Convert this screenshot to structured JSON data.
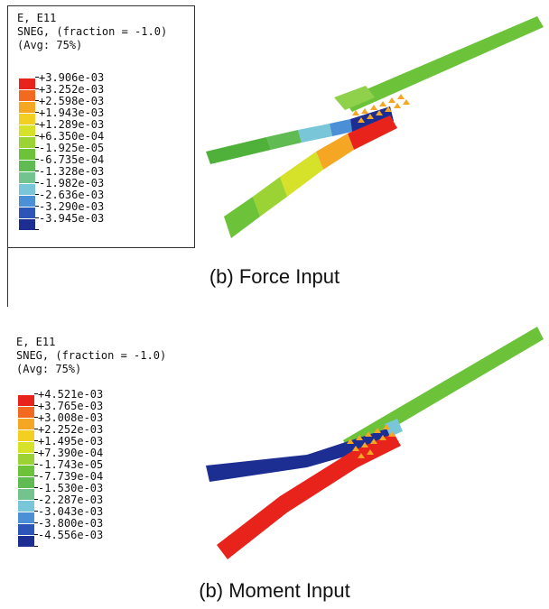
{
  "top": {
    "header_line1": "E, E11",
    "header_line2": "SNEG, (fraction = -1.0)",
    "header_line3": "(Avg: 75%)",
    "legend": [
      {
        "label": "+3.906e-03",
        "color": "#e8231c"
      },
      {
        "label": "+3.252e-03",
        "color": "#f26a1f"
      },
      {
        "label": "+2.598e-03",
        "color": "#f5a623"
      },
      {
        "label": "+1.943e-03",
        "color": "#f3cf22"
      },
      {
        "label": "+1.289e-03",
        "color": "#d6e12a"
      },
      {
        "label": "+6.350e-04",
        "color": "#9ad333"
      },
      {
        "label": "-1.925e-05",
        "color": "#6cc33a"
      },
      {
        "label": "-6.735e-04",
        "color": "#5fbb52"
      },
      {
        "label": "-1.328e-03",
        "color": "#73c38f"
      },
      {
        "label": "-1.982e-03",
        "color": "#79c6d8"
      },
      {
        "label": "-2.636e-03",
        "color": "#4b8fd6"
      },
      {
        "label": "-3.290e-03",
        "color": "#2d55b8"
      },
      {
        "label": "-3.945e-03",
        "color": "#1d2e93"
      }
    ],
    "caption": "(b) Force Input"
  },
  "bottom": {
    "header_line1": "E, E11",
    "header_line2": "SNEG, (fraction = -1.0)",
    "header_line3": "(Avg: 75%)",
    "legend": [
      {
        "label": "+4.521e-03",
        "color": "#e8231c"
      },
      {
        "label": "+3.765e-03",
        "color": "#f26a1f"
      },
      {
        "label": "+3.008e-03",
        "color": "#f5a623"
      },
      {
        "label": "+2.252e-03",
        "color": "#f3cf22"
      },
      {
        "label": "+1.495e-03",
        "color": "#d6e12a"
      },
      {
        "label": "+7.390e-04",
        "color": "#9ad333"
      },
      {
        "label": "-1.743e-05",
        "color": "#6cc33a"
      },
      {
        "label": "-7.739e-04",
        "color": "#5fbb52"
      },
      {
        "label": "-1.530e-03",
        "color": "#73c38f"
      },
      {
        "label": "-2.287e-03",
        "color": "#79c6d8"
      },
      {
        "label": "-3.043e-03",
        "color": "#4b8fd6"
      },
      {
        "label": "-3.800e-03",
        "color": "#2d55b8"
      },
      {
        "label": "-4.556e-03",
        "color": "#1d2e93"
      }
    ],
    "caption": "(b) Moment Input"
  }
}
